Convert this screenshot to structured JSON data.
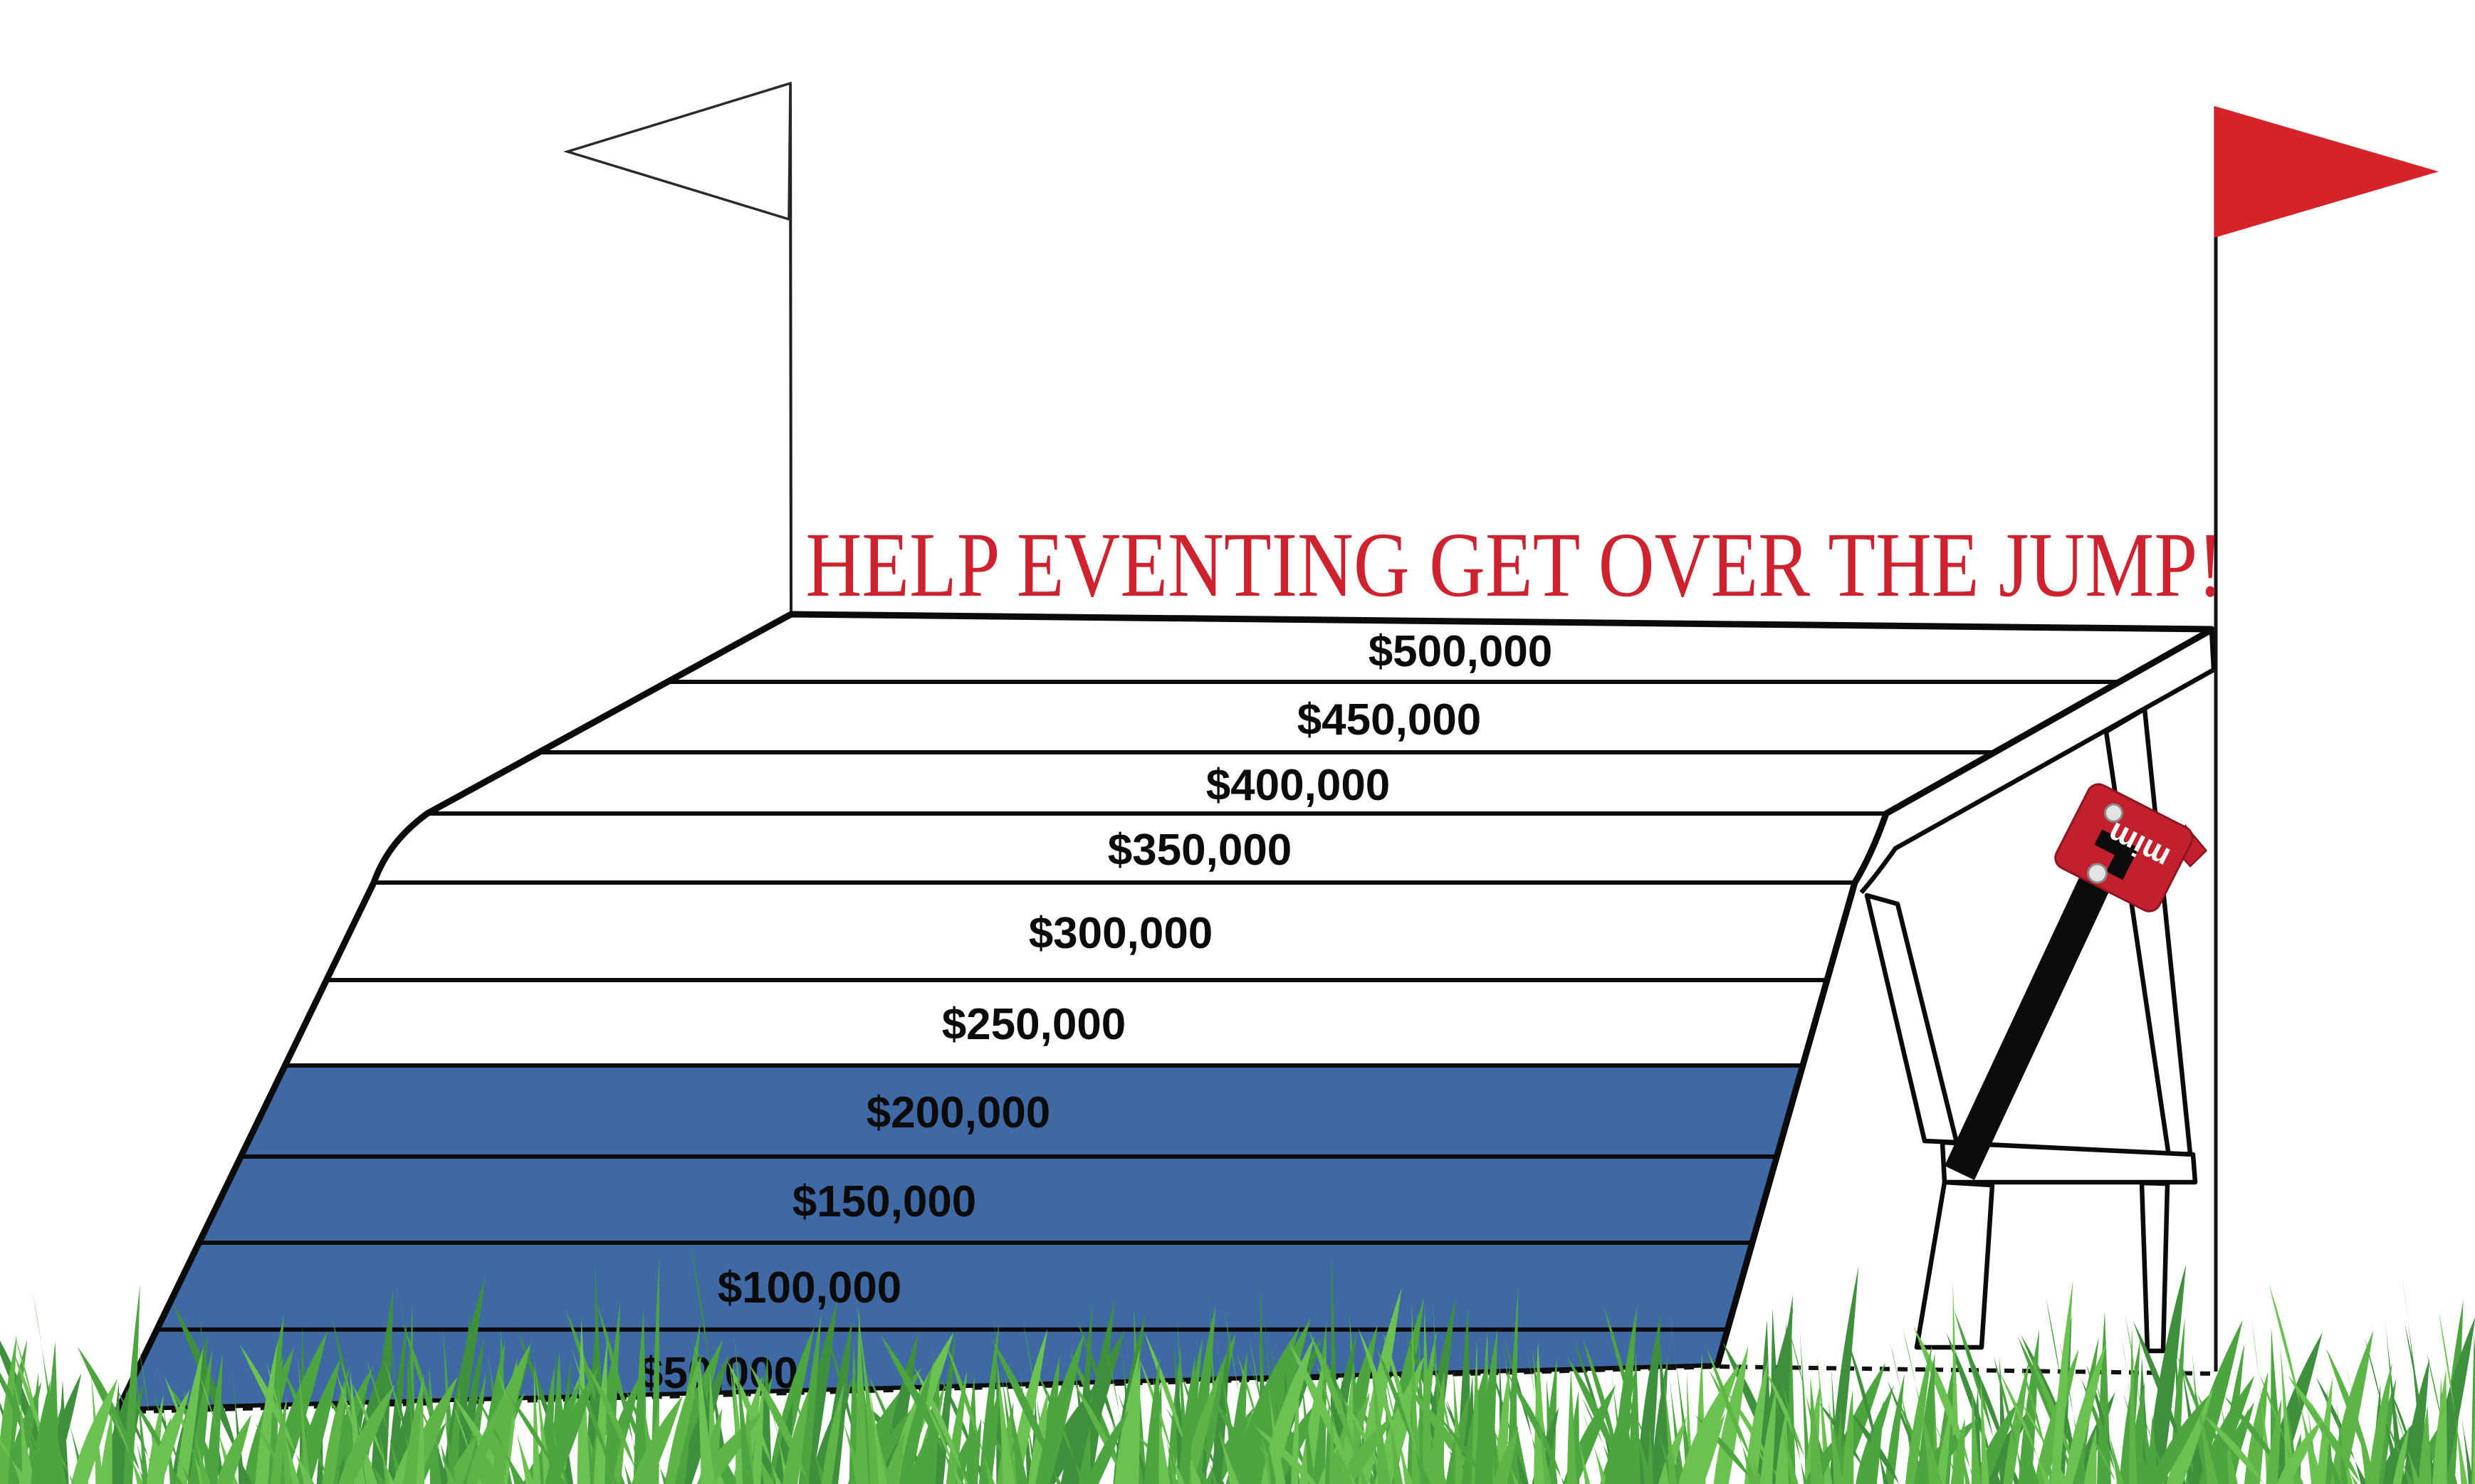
{
  "title": {
    "text": "HELP EVENTING GET OVER THE JUMP!",
    "color": "#CE232E"
  },
  "chart_data": {
    "type": "bar",
    "subtype": "fundraising-goal-thermometer",
    "title": "HELP EVENTING GET OVER THE JUMP!",
    "categories": [
      "$50,000",
      "$100,000",
      "$150,000",
      "$200,000",
      "$250,000",
      "$300,000",
      "$350,000",
      "$400,000",
      "$450,000",
      "$500,000"
    ],
    "values": [
      50000,
      100000,
      150000,
      200000,
      250000,
      300000,
      350000,
      400000,
      450000,
      500000
    ],
    "filled": [
      true,
      true,
      true,
      true,
      false,
      false,
      false,
      false,
      false,
      false
    ],
    "raised_level": 200000,
    "goal": 500000,
    "fill_color": "#3F69A5",
    "unfilled_color": "#FFFFFF",
    "legend_position": "none",
    "grid": false
  },
  "jump": {
    "levels": [
      {
        "label": "$500,000",
        "value": 500000,
        "filled": false
      },
      {
        "label": "$450,000",
        "value": 450000,
        "filled": false
      },
      {
        "label": "$400,000",
        "value": 400000,
        "filled": false
      },
      {
        "label": "$350,000",
        "value": 350000,
        "filled": false
      },
      {
        "label": "$300,000",
        "value": 300000,
        "filled": false
      },
      {
        "label": "$250,000",
        "value": 250000,
        "filled": false
      },
      {
        "label": "$200,000",
        "value": 200000,
        "filled": true
      },
      {
        "label": "$150,000",
        "value": 150000,
        "filled": true
      },
      {
        "label": "$100,000",
        "value": 100000,
        "filled": true
      },
      {
        "label": "$50,000",
        "value": 50000,
        "filled": true
      }
    ],
    "filled_color": "#3F69A5",
    "unfilled_color": "#FFFFFF",
    "outline_color": "#0B0B0B",
    "label_color": "#0B0B0B"
  },
  "flags": {
    "left": {
      "name": "white flag",
      "color": "#FFFFFF",
      "outline": "#2A2A2A",
      "pole_color": "#1C1C1C"
    },
    "right": {
      "name": "red flag",
      "color": "#D7222A",
      "pole_color": "#141414"
    }
  },
  "frangible_clip": {
    "label": "mim",
    "body_color": "#C2202C",
    "body_edge": "#8F1620",
    "pin_color": "#0C0C0C",
    "bolt_color": "#E3E3E3",
    "label_color": "#FFFFFF"
  },
  "grass": {
    "colors": [
      "#5CB545",
      "#4CA53F",
      "#3F8F3D",
      "#6CC251"
    ]
  }
}
